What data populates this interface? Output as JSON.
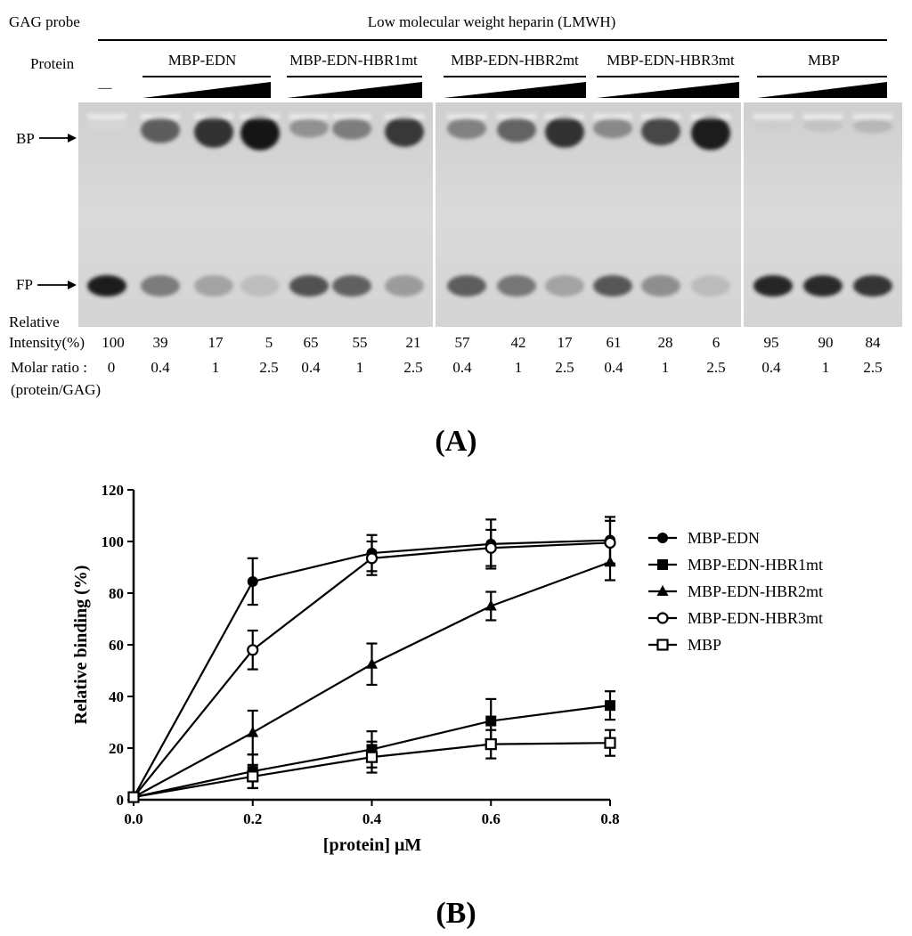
{
  "panel_a": {
    "gag_probe_label": "GAG probe",
    "lmwh_label": "Low molecular weight heparin (LMWH)",
    "protein_label": "Protein",
    "no_protein_mark": "—",
    "bp_label": "BP",
    "fp_label": "FP",
    "relative_label": "Relative",
    "intensity_label": "Intensity(%)",
    "molar_ratio_label": "Molar ratio :",
    "molar_ratio_sub_label": "(protein/GAG)",
    "control": {
      "intensity": "100",
      "ratio": "0"
    },
    "groups": [
      {
        "name": "MBP-EDN",
        "intensities": [
          "39",
          "17",
          "5"
        ],
        "ratios": [
          "0.4",
          "1",
          "2.5"
        ]
      },
      {
        "name": "MBP-EDN-HBR1mt",
        "intensities": [
          "65",
          "55",
          "21"
        ],
        "ratios": [
          "0.4",
          "1",
          "2.5"
        ]
      },
      {
        "name": "MBP-EDN-HBR2mt",
        "intensities": [
          "57",
          "42",
          "17"
        ],
        "ratios": [
          "0.4",
          "1",
          "2.5"
        ]
      },
      {
        "name": "MBP-EDN-HBR3mt",
        "intensities": [
          "61",
          "28",
          "6"
        ],
        "ratios": [
          "0.4",
          "1",
          "2.5"
        ]
      },
      {
        "name": "MBP",
        "intensities": [
          "95",
          "90",
          "84"
        ],
        "ratios": [
          "0.4",
          "1",
          "2.5"
        ]
      }
    ],
    "gel": {
      "fp_intensity_percent": [
        100,
        39,
        17,
        5,
        65,
        55,
        21,
        57,
        42,
        17,
        61,
        28,
        6,
        95,
        90,
        84
      ]
    },
    "caption": "(A)"
  },
  "chart_data": {
    "type": "line",
    "xlabel": "[protein] μM",
    "ylabel": "Relative binding (%)",
    "xlim": [
      0,
      0.8
    ],
    "ylim": [
      0,
      120
    ],
    "xticks": [
      "0.0",
      "0.2",
      "0.4",
      "0.6",
      "0.8"
    ],
    "yticks": [
      "0",
      "20",
      "40",
      "60",
      "80",
      "100",
      "120"
    ],
    "x": [
      0,
      0.2,
      0.4,
      0.6,
      0.8
    ],
    "legend_position": "right",
    "grid": false,
    "series": [
      {
        "name": "MBP-EDN",
        "marker": "circle-filled",
        "values": [
          1,
          84.5,
          95.5,
          99,
          100.5
        ],
        "errors": [
          1,
          9,
          7,
          9.5,
          9
        ]
      },
      {
        "name": "MBP-EDN-HBR1mt",
        "marker": "square-filled",
        "values": [
          1,
          11,
          19.5,
          30.5,
          36.5
        ],
        "errors": [
          1,
          6.5,
          7,
          8.5,
          5.5
        ]
      },
      {
        "name": "MBP-EDN-HBR2mt",
        "marker": "triangle-filled",
        "values": [
          1,
          26,
          52.5,
          75,
          92
        ],
        "errors": [
          1,
          8.5,
          8,
          5.5,
          7
        ]
      },
      {
        "name": "MBP-EDN-HBR3mt",
        "marker": "circle-open",
        "values": [
          1,
          58,
          93.5,
          97.5,
          99.5
        ],
        "errors": [
          1,
          7.5,
          6.5,
          7,
          8.5
        ]
      },
      {
        "name": "MBP",
        "marker": "square-open",
        "values": [
          1,
          9,
          16.5,
          21.5,
          22
        ],
        "errors": [
          1,
          4.5,
          6,
          5.5,
          5
        ]
      }
    ],
    "caption": "(B)"
  }
}
